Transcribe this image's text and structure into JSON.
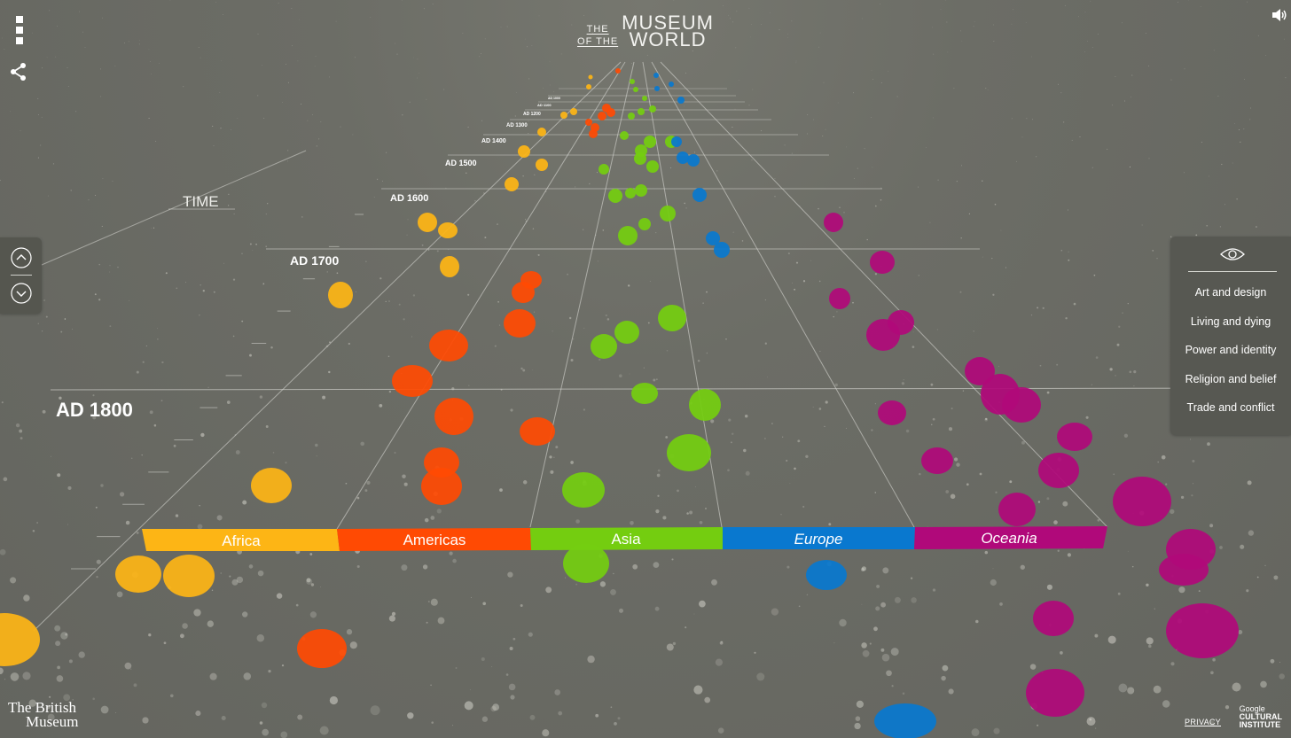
{
  "header": {
    "logo_small_1": "THE",
    "logo_small_2": "OF THE",
    "logo_big_1": "MUSEUM",
    "logo_big_2": "WORLD"
  },
  "time_axis": {
    "axis_label": "TIME",
    "years": [
      "AD 1800",
      "AD 1700",
      "AD 1600",
      "AD 1500",
      "AD 1400",
      "AD 1300",
      "AD 1200",
      "AD 1100",
      "AD 1000"
    ]
  },
  "regions": [
    {
      "label": "Africa",
      "color": "#FDB515"
    },
    {
      "label": "Americas",
      "color": "#FF4A03"
    },
    {
      "label": "Asia",
      "color": "#74CD10"
    },
    {
      "label": "Europe",
      "color": "#0978CF"
    },
    {
      "label": "Oceania",
      "color": "#B0097A"
    }
  ],
  "filter_panel": {
    "eye_icon": "eye-icon",
    "items": [
      "Art and design",
      "Living and dying",
      "Power and identity",
      "Religion and belief",
      "Trade and conflict"
    ]
  },
  "footer": {
    "museum_line1": "The British",
    "museum_line2": "Museum",
    "privacy": "PRIVACY",
    "partner_line1": "Google",
    "partner_line2": "CULTURAL",
    "partner_line3": "INSTITUTE"
  },
  "icons": {
    "menu": "menu-icon",
    "share": "share-icon",
    "sound": "sound-icon",
    "up": "chevron-up-icon",
    "down": "chevron-down-icon"
  }
}
